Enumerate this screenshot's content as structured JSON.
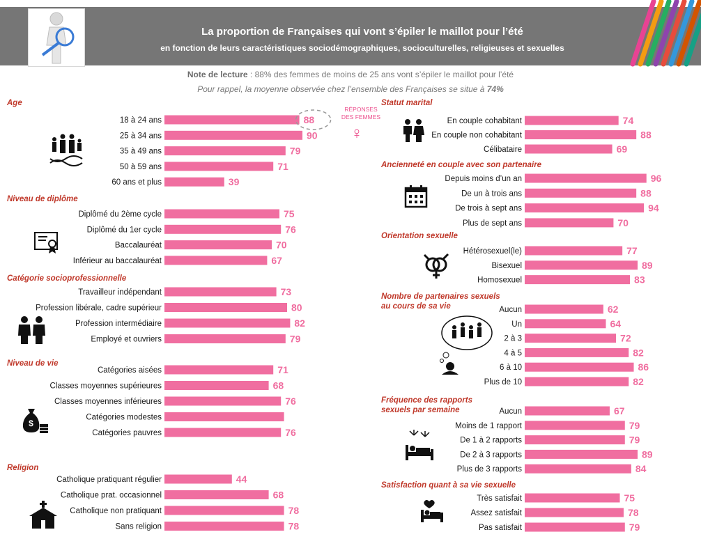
{
  "header": {
    "title": "La proportion de Françaises qui vont s’épiler le maillot pour l’été",
    "subtitle": "en fonction de leurs caractéristiques sociodémographiques, socioculturelles, religieuses et sexuelles",
    "stripe_colors": [
      "#e84393",
      "#f39c12",
      "#27ae60",
      "#8e44ad",
      "#e74c3c",
      "#3498db",
      "#d35400",
      "#16a085"
    ]
  },
  "note": {
    "lead": "Note de lecture",
    "text": " : 88% des femmes de moins de 25 ans vont s’épiler le maillot pour l’été"
  },
  "reminder": {
    "text": "Pour rappel, la moyenne observée chez l’ensemble des Françaises se situe à ",
    "value": "74%"
  },
  "legend": {
    "line1": "RÉPONSES",
    "line2": "DES FEMMES",
    "symbol": "♀"
  },
  "colors": {
    "bar": "#f06ea0",
    "value": "#f06ea0",
    "section": "#c0392b",
    "header": "#767676"
  },
  "chart_data": {
    "type": "bar",
    "orientation": "horizontal",
    "unit": "%",
    "xlim": [
      0,
      100
    ],
    "groups": [
      {
        "title": "Age",
        "icon": "family-dna-icon",
        "categories": [
          "18 à 24 ans",
          "25 à 34 ans",
          "35 à 49 ans",
          "50 à 59 ans",
          "60 ans et plus"
        ],
        "values": [
          88,
          90,
          79,
          71,
          39
        ],
        "labels": [
          "88",
          "90",
          "79",
          "71",
          "39"
        ],
        "highlight": 0
      },
      {
        "title": "Niveau de diplôme",
        "icon": "diploma-icon",
        "categories": [
          "Diplômé du 2ème cycle",
          "Diplômé du 1er cycle",
          "Baccalauréat",
          "Inférieur au baccalauréat"
        ],
        "values": [
          75,
          76,
          70,
          67
        ],
        "labels": [
          "75",
          "76",
          "70",
          "67"
        ]
      },
      {
        "title": "Catégorie socioprofessionnelle",
        "icon": "workers-icon",
        "categories": [
          "Travailleur indépendant",
          "Profession libérale, cadre supérieur",
          "Profession intermédiaire",
          "Employé et ouvriers"
        ],
        "values": [
          73,
          80,
          82,
          79
        ],
        "labels": [
          "73",
          "80",
          "82",
          "79"
        ]
      },
      {
        "title": "Niveau de vie",
        "icon": "money-bag-icon",
        "categories": [
          "Catégories aisées",
          "Classes moyennes supérieures",
          "Classes moyennes inférieures",
          "Catégories modestes",
          "Catégories pauvres"
        ],
        "values": [
          71,
          68,
          76,
          78,
          76
        ],
        "labels": [
          "71",
          "68",
          "76",
          "",
          "76"
        ]
      },
      {
        "title": "Religion",
        "icon": "church-icon",
        "categories": [
          "Catholique pratiquant régulier",
          "Catholique prat. occasionnel",
          "Catholique non pratiquant",
          "Sans religion"
        ],
        "values": [
          44,
          68,
          78,
          78
        ],
        "labels": [
          "44",
          "68",
          "78",
          "78"
        ]
      },
      {
        "title": "Statut marital",
        "icon": "couple-icon",
        "categories": [
          "En couple cohabitant",
          "En couple non cohabitant",
          "Célibataire"
        ],
        "values": [
          74,
          88,
          69
        ],
        "labels": [
          "74",
          "88",
          "69"
        ]
      },
      {
        "title": "Ancienneté en couple avec son partenaire",
        "icon": "calendar-icon",
        "categories": [
          "Depuis moins d’un an",
          "De un à trois ans",
          "De trois à sept ans",
          "Plus de sept ans"
        ],
        "values": [
          96,
          88,
          94,
          70
        ],
        "labels": [
          "96",
          "88",
          "94",
          "70"
        ]
      },
      {
        "title": "Orientation sexuelle",
        "icon": "gender-symbols-icon",
        "categories": [
          "Hétérosexuel(le)",
          "Bisexuel",
          "Homosexuel"
        ],
        "values": [
          77,
          89,
          83
        ],
        "labels": [
          "77",
          "89",
          "83"
        ]
      },
      {
        "title": "Nombre de partenaires sexuels",
        "title_line2": "au cours de sa vie",
        "icon": "thinking-person-icon",
        "categories": [
          "Aucun",
          "Un",
          "2 à 3",
          "4 à 5",
          "6 à 10",
          "Plus de 10"
        ],
        "values": [
          62,
          64,
          72,
          82,
          86,
          82
        ],
        "labels": [
          "62",
          "64",
          "72",
          "82",
          "86",
          "82"
        ]
      },
      {
        "title": "Fréquence des rapports",
        "title_line2": "sexuels par semaine",
        "icon": "bed-fireworks-icon",
        "categories": [
          "Aucun",
          "Moins de 1 rapport",
          "De 1 à 2 rapports",
          "De 2 à 3 rapports",
          "Plus de 3 rapports"
        ],
        "values": [
          67,
          79,
          79,
          89,
          84
        ],
        "labels": [
          "67",
          "79",
          "79",
          "89",
          "84"
        ]
      },
      {
        "title": "Satisfaction quant à sa vie sexuelle",
        "icon": "bed-heart-icon",
        "categories": [
          "Très satisfait",
          "Assez satisfait",
          "Pas satisfait"
        ],
        "values": [
          75,
          78,
          79
        ],
        "labels": [
          "75",
          "78",
          "79"
        ]
      }
    ]
  }
}
